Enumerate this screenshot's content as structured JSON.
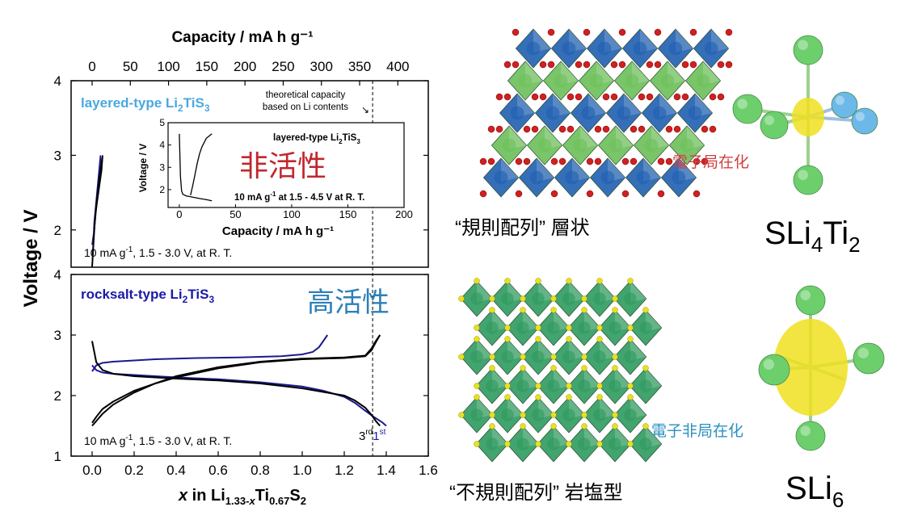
{
  "chart_data": [
    {
      "type": "line",
      "panel": "top",
      "title": "layered-type Li₂TiS₃",
      "x_top_label": "Capacity / mA h g⁻¹",
      "x_top_ticks": [
        "0",
        "50",
        "100",
        "150",
        "200",
        "250",
        "300",
        "350",
        "400"
      ],
      "ylabel": "Voltage / V",
      "y_ticks": [
        "2",
        "3",
        "4"
      ],
      "ylim": [
        1.5,
        4
      ],
      "xlim": [
        -0.1,
        1.6
      ],
      "condition": "10 mA g⁻¹, 1.5 - 3.0 V, at R. T.",
      "annotation": "theoretical capacity based on Li contents",
      "annotation_lines": [
        "theoretical capacity",
        "based on Li contents"
      ],
      "theoretical_x": 1.335,
      "series": [
        {
          "color": "#1a1a8c",
          "x": [
            0.0,
            0.01,
            0.02,
            0.03,
            0.04,
            0.04,
            0.03,
            0.02,
            0.01,
            0.0
          ],
          "y": [
            1.5,
            2.1,
            2.4,
            2.7,
            3.0,
            2.95,
            2.6,
            2.3,
            2.0,
            1.8
          ]
        },
        {
          "color": "#000000",
          "x": [
            0.0,
            0.015,
            0.03,
            0.045,
            0.05,
            0.035,
            0.02,
            0.01
          ],
          "y": [
            1.5,
            2.2,
            2.5,
            2.8,
            3.0,
            2.7,
            2.35,
            2.0
          ]
        }
      ],
      "inset": {
        "title": "layered-type Li₂TiS₃",
        "xlabel": "Capacity / mA h g⁻¹",
        "ylabel": "Voltage / V",
        "x_ticks": [
          "0",
          "50",
          "100",
          "150",
          "200"
        ],
        "y_ticks": [
          "2",
          "3",
          "4",
          "5"
        ],
        "xlim": [
          -10,
          200
        ],
        "ylim": [
          1.2,
          5.0
        ],
        "condition": "10 mA g⁻¹ at 1.5 - 4.5 V at R. T.",
        "series": [
          {
            "x": [
              0,
              1,
              2,
              3,
              6,
              12,
              18,
              24,
              29
            ],
            "y": [
              4.5,
              2.6,
              1.95,
              1.8,
              1.72,
              1.66,
              1.6,
              1.55,
              1.5
            ]
          },
          {
            "x": [
              10,
              12,
              14,
              16,
              18,
              20,
              24,
              29
            ],
            "y": [
              1.75,
              2.2,
              2.7,
              3.2,
              3.6,
              3.9,
              4.3,
              4.5
            ]
          }
        ]
      }
    },
    {
      "type": "line",
      "panel": "bottom",
      "title": "rocksalt-type Li₂TiS₃",
      "xlabel": "x in Li1.33-xTi0.67S2",
      "x_ticks": [
        "0.0",
        "0.2",
        "0.4",
        "0.6",
        "0.8",
        "1.0",
        "1.2",
        "1.4",
        "1.6"
      ],
      "y_ticks": [
        "1",
        "2",
        "3",
        "4"
      ],
      "ylim": [
        1,
        4
      ],
      "xlim": [
        -0.1,
        1.6
      ],
      "condition": "10 mA g⁻¹, 1.5 - 3.0 V, at R. T.",
      "cycle_labels": {
        "third": "3",
        "third_sup": "rd",
        "first": "1",
        "first_sup": "st"
      },
      "series": [
        {
          "name": "1st",
          "color": "#1a1a8c",
          "role": "charge",
          "x": [
            0.0,
            0.02,
            0.05,
            0.1,
            0.2,
            0.3,
            0.5,
            0.7,
            0.9,
            1.0,
            1.05,
            1.08,
            1.1,
            1.12
          ],
          "y": [
            2.4,
            2.5,
            2.54,
            2.56,
            2.58,
            2.6,
            2.62,
            2.63,
            2.65,
            2.68,
            2.72,
            2.8,
            2.9,
            3.0
          ]
        },
        {
          "name": "1st",
          "color": "#1a1a8c",
          "role": "discharge",
          "x": [
            1.4,
            1.38,
            1.34,
            1.3,
            1.25,
            1.2,
            1.1,
            1.0,
            0.8,
            0.6,
            0.4,
            0.3,
            0.2,
            0.1,
            0.05,
            0.02,
            0.0
          ],
          "y": [
            1.5,
            1.56,
            1.65,
            1.75,
            1.88,
            1.98,
            2.08,
            2.15,
            2.22,
            2.27,
            2.3,
            2.32,
            2.34,
            2.36,
            2.38,
            2.42,
            2.5
          ]
        },
        {
          "name": "3rd",
          "color": "#000000",
          "role": "charge",
          "x": [
            0.0,
            0.05,
            0.1,
            0.2,
            0.3,
            0.4,
            0.6,
            0.8,
            1.0,
            1.2,
            1.3,
            1.33,
            1.35,
            1.37
          ],
          "y": [
            1.5,
            1.7,
            1.85,
            2.05,
            2.2,
            2.3,
            2.45,
            2.55,
            2.6,
            2.62,
            2.65,
            2.75,
            2.88,
            3.0
          ]
        },
        {
          "name": "3rd",
          "color": "#000000",
          "role": "discharge",
          "x": [
            1.37,
            1.35,
            1.33,
            1.3,
            1.25,
            1.2,
            1.0,
            0.8,
            0.6,
            0.4,
            0.2,
            0.1,
            0.05,
            0.02,
            0.0
          ],
          "y": [
            1.5,
            1.58,
            1.68,
            1.8,
            1.92,
            2.0,
            2.12,
            2.2,
            2.25,
            2.28,
            2.32,
            2.36,
            2.42,
            2.55,
            2.9
          ]
        },
        {
          "name": "3rd",
          "color": "#000000",
          "role": "charge",
          "x": [
            0.0,
            0.02,
            0.05,
            0.1,
            0.2,
            0.4,
            0.6,
            0.8,
            1.0,
            1.2,
            1.3,
            1.33,
            1.35,
            1.37
          ],
          "y": [
            1.55,
            1.65,
            1.78,
            1.9,
            2.08,
            2.32,
            2.47,
            2.56,
            2.61,
            2.63,
            2.66,
            2.78,
            2.9,
            3.0
          ]
        }
      ],
      "theoretical_x": 1.335
    }
  ],
  "annotations": {
    "inactive": "非活性",
    "active": "高活性",
    "ordered_layered": "“規則配列” 層状",
    "disordered_rocksalt": "“不規則配列” 岩塩型",
    "electron_localized": "電子局在化",
    "electron_delocalized": "電子非局在化",
    "sli4ti2": {
      "S": "SLi",
      "n1": "4",
      "Ti": "Ti",
      "n2": "2"
    },
    "sli6": {
      "S": "SLi",
      "n1": "6"
    }
  },
  "colors": {
    "layered_label": "#4aa8e0",
    "rocksalt_label": "#1a1aa8",
    "inactive": "#c0272d",
    "active": "#2e7fb8",
    "localized": "#d04040",
    "delocalized": "#2a90c0",
    "crystal_green": "#6cbf5a",
    "crystal_blue": "#1f5fb0",
    "rocksalt_green": "#2e9a5e",
    "oxygen": "#d02020",
    "sulfur": "#e8e020",
    "lithium_ball": "#6ccf6c",
    "ti_ball": "#6cb8e8",
    "orbital": "#f0e020"
  }
}
